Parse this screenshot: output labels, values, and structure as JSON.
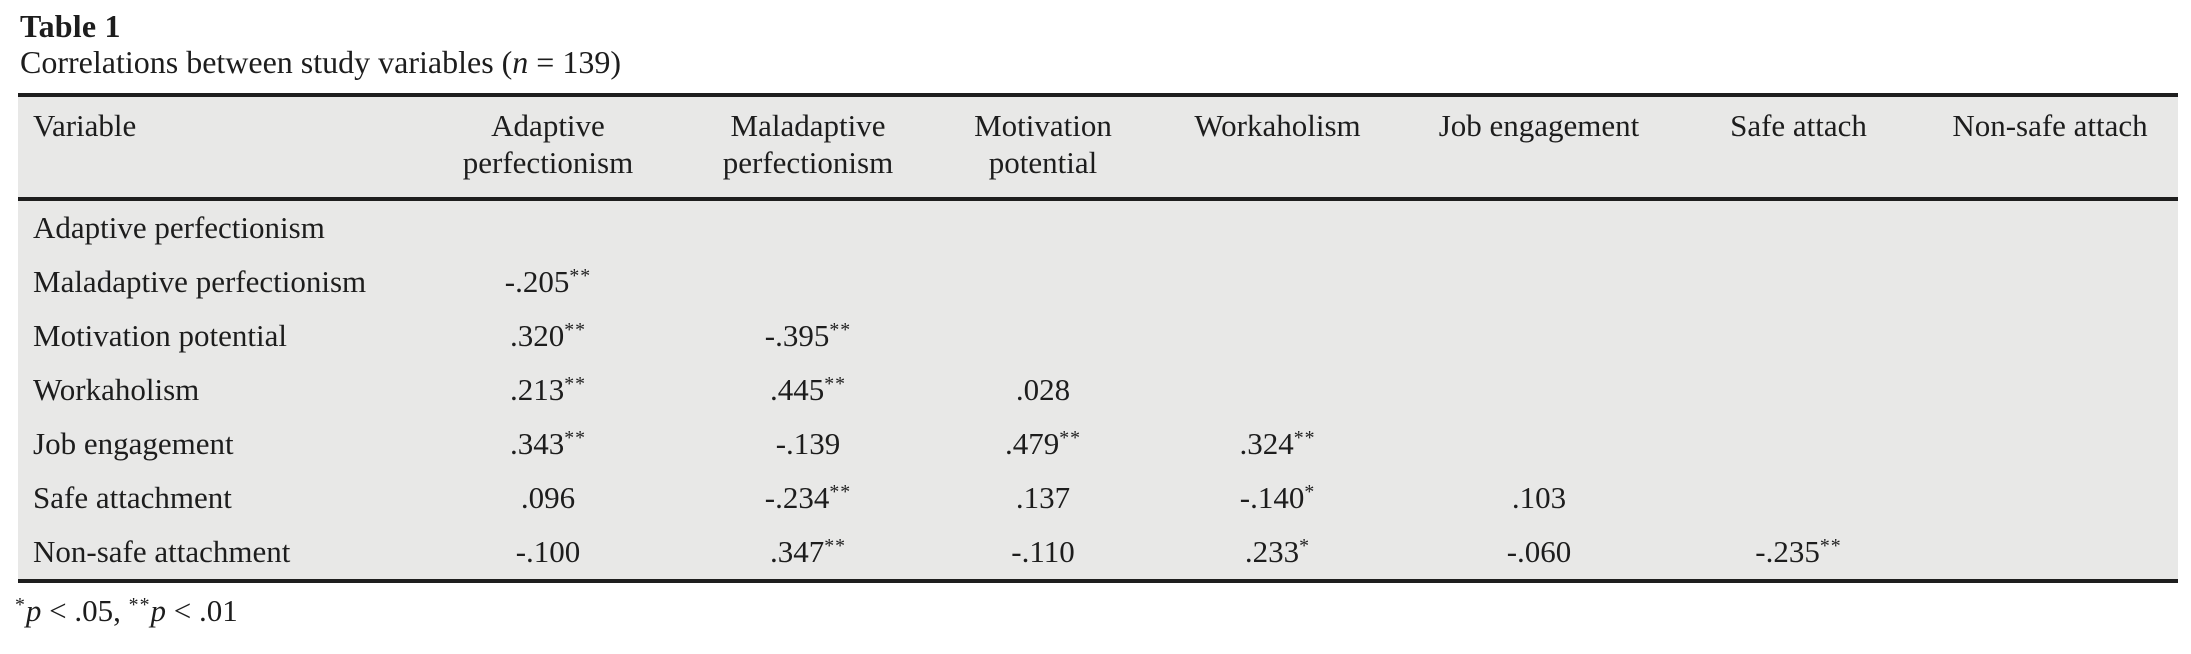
{
  "page": {
    "title": "Table 1",
    "caption": {
      "pre": "Correlations between study variables (",
      "var": "n",
      "post": " = 139)"
    }
  },
  "table": {
    "columns": [
      "Variable",
      "Adaptive perfectionism",
      "Maladaptive perfectionism",
      "Motivation potential",
      "Workaholism",
      "Job engagement",
      "Safe attach",
      "Non-safe attach"
    ],
    "rows": [
      {
        "label": "Adaptive perfectionism",
        "cells": [
          "",
          "",
          "",
          "",
          "",
          "",
          ""
        ]
      },
      {
        "label": "Maladaptive perfectionism",
        "cells": [
          "-.205**",
          "",
          "",
          "",
          "",
          "",
          ""
        ]
      },
      {
        "label": "Motivation potential",
        "cells": [
          ".320**",
          "-.395**",
          "",
          "",
          "",
          "",
          ""
        ]
      },
      {
        "label": "Workaholism",
        "cells": [
          ".213**",
          ".445**",
          ".028",
          "",
          "",
          "",
          ""
        ]
      },
      {
        "label": "Job engagement",
        "cells": [
          ".343**",
          "-.139",
          ".479**",
          ".324**",
          "",
          "",
          ""
        ]
      },
      {
        "label": "Safe attachment",
        "cells": [
          ".096",
          "-.234**",
          ".137",
          "-.140*",
          ".103",
          "",
          ""
        ]
      },
      {
        "label": "Non-safe attachment",
        "cells": [
          "-.100",
          ".347**",
          "-.110",
          ".233*",
          "-.060",
          "-.235**",
          ""
        ]
      }
    ]
  },
  "footnote": {
    "star1": "*",
    "p1": "p",
    "text1": " < .05, ",
    "star2": "**",
    "p2": "p",
    "text2": " < .01"
  },
  "colors": {
    "table_background": "#e8e8e7",
    "rule": "#1e1e1e",
    "text": "#1d1d1d"
  }
}
